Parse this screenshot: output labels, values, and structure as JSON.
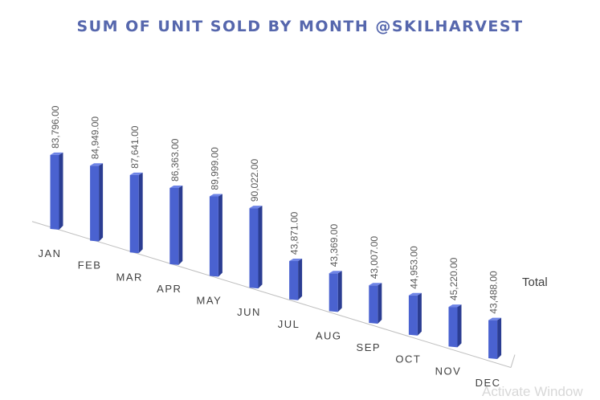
{
  "colors": {
    "title": "#5667ad",
    "bar_front": "#4a62d0",
    "bar_side": "#2b3d92",
    "bar_top": "#6e84e6",
    "label": "#595959",
    "axis": "#bfbfbf"
  },
  "watermark": "Activate Window",
  "chart_data": {
    "type": "bar",
    "title": "SUM OF UNIT SOLD BY MONTH @SKILHARVEST",
    "categories": [
      "JAN",
      "FEB",
      "MAR",
      "APR",
      "MAY",
      "JUN",
      "JUL",
      "AUG",
      "SEP",
      "OCT",
      "NOV",
      "DEC"
    ],
    "series": [
      {
        "name": "Total",
        "values": [
          83796,
          84949,
          87641,
          86363,
          89999,
          90022,
          43871,
          43369,
          43007,
          44953,
          45220,
          43488
        ],
        "labels": [
          "83,796.00",
          "84,949.00",
          "87,641.00",
          "86,363.00",
          "89,999.00",
          "90,022.00",
          "43,871.00",
          "43,369.00",
          "43,007.00",
          "44,953.00",
          "45,220.00",
          "43,488.00"
        ]
      }
    ],
    "ylim": [
      0,
      90022
    ],
    "grid": false,
    "legend": "none",
    "style": "3d-perspective"
  }
}
